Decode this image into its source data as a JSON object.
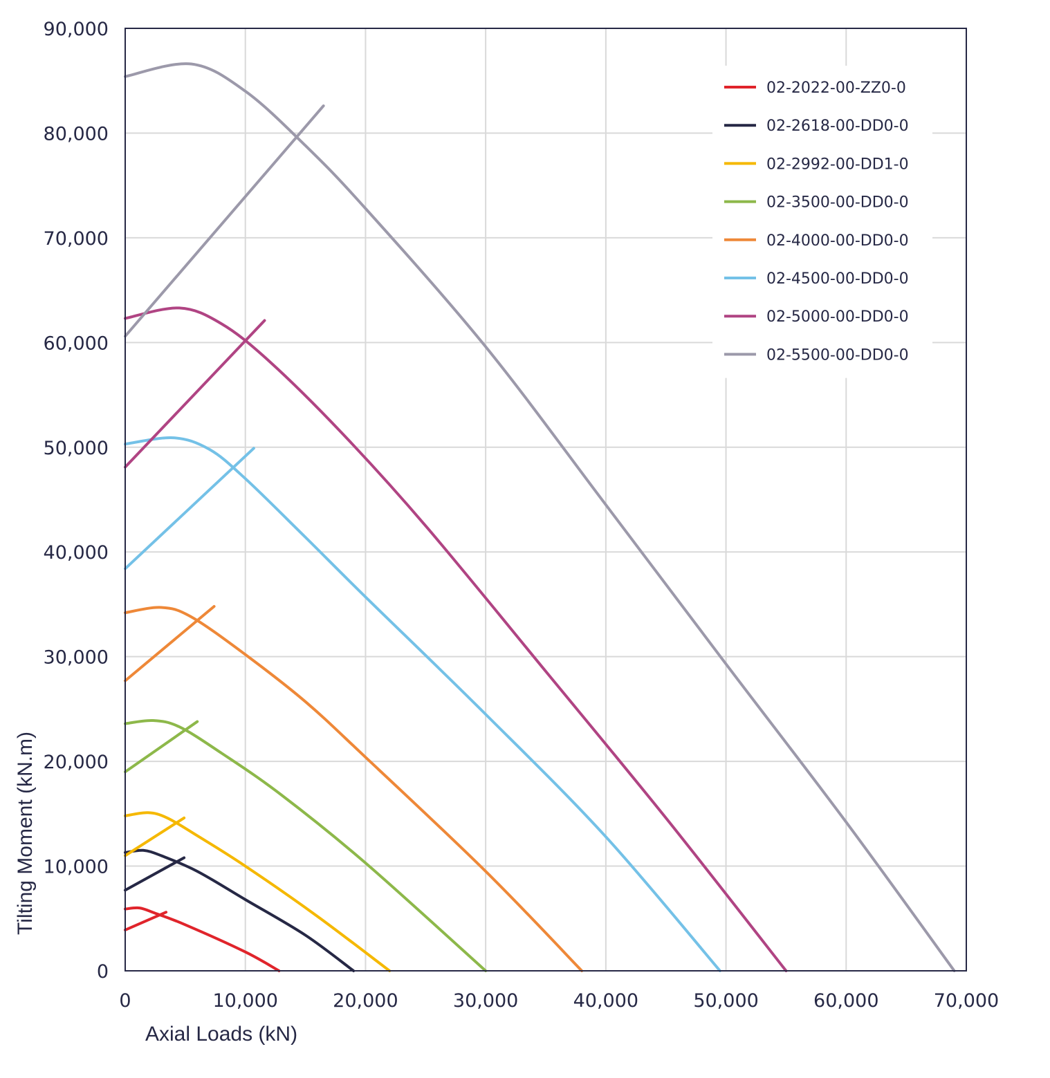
{
  "chart_data": {
    "type": "line",
    "title": "",
    "xlabel": "Axial Loads (kN)",
    "ylabel": "Tilting Moment (kN.m)",
    "xlim": [
      0,
      70000
    ],
    "ylim": [
      0,
      90000
    ],
    "x_ticks": [
      "0",
      "10,000",
      "20,000",
      "30,000",
      "40,000",
      "50,000",
      "60,000",
      "70,000"
    ],
    "y_ticks": [
      "0",
      "10,000",
      "20,000",
      "30,000",
      "40,000",
      "50,000",
      "60,000",
      "70,000",
      "80,000",
      "90,000"
    ],
    "grid": true,
    "legend_position": "top-right",
    "series": [
      {
        "name": "02-2022-00-ZZ0-0",
        "color": "#e0242b",
        "curve": [
          [
            0,
            5900
          ],
          [
            1200,
            6000
          ],
          [
            2500,
            5500
          ],
          [
            5000,
            4400
          ],
          [
            10000,
            1800
          ],
          [
            12800,
            0
          ]
        ],
        "segment": [
          [
            0,
            3900
          ],
          [
            3400,
            5600
          ]
        ]
      },
      {
        "name": "02-2618-00-DD0-0",
        "color": "#262845",
        "curve": [
          [
            0,
            11300
          ],
          [
            1500,
            11500
          ],
          [
            3000,
            11000
          ],
          [
            6000,
            9500
          ],
          [
            10000,
            6800
          ],
          [
            15000,
            3400
          ],
          [
            19000,
            0
          ]
        ],
        "segment": [
          [
            0,
            7700
          ],
          [
            4900,
            10800
          ]
        ]
      },
      {
        "name": "02-2992-00-DD1-0",
        "color": "#f5b800",
        "curve": [
          [
            0,
            14800
          ],
          [
            1900,
            15100
          ],
          [
            3500,
            14600
          ],
          [
            6000,
            12900
          ],
          [
            10000,
            10000
          ],
          [
            16000,
            5200
          ],
          [
            22000,
            0
          ]
        ],
        "segment": [
          [
            0,
            11000
          ],
          [
            4900,
            14600
          ]
        ]
      },
      {
        "name": "02-3500-00-DD0-0",
        "color": "#8db84a",
        "curve": [
          [
            0,
            23600
          ],
          [
            2300,
            23900
          ],
          [
            4500,
            23300
          ],
          [
            8000,
            20800
          ],
          [
            13000,
            16800
          ],
          [
            20000,
            10300
          ],
          [
            30000,
            0
          ]
        ],
        "segment": [
          [
            0,
            19000
          ],
          [
            6000,
            23800
          ]
        ]
      },
      {
        "name": "02-4000-00-DD0-0",
        "color": "#ee8838",
        "curve": [
          [
            0,
            34200
          ],
          [
            3000,
            34700
          ],
          [
            5500,
            33800
          ],
          [
            10000,
            30200
          ],
          [
            15000,
            25700
          ],
          [
            20000,
            20400
          ],
          [
            30000,
            9500
          ],
          [
            38000,
            0
          ]
        ],
        "segment": [
          [
            0,
            27700
          ],
          [
            7400,
            34800
          ]
        ]
      },
      {
        "name": "02-4500-00-DD0-0",
        "color": "#74c1e7",
        "curve": [
          [
            0,
            50300
          ],
          [
            4000,
            50900
          ],
          [
            7000,
            49800
          ],
          [
            10000,
            47000
          ],
          [
            15000,
            41400
          ],
          [
            20000,
            35700
          ],
          [
            30000,
            24500
          ],
          [
            40000,
            12800
          ],
          [
            49500,
            0
          ]
        ],
        "segment": [
          [
            0,
            38400
          ],
          [
            10700,
            49900
          ]
        ]
      },
      {
        "name": "02-5000-00-DD0-0",
        "color": "#b04483",
        "curve": [
          [
            0,
            62300
          ],
          [
            4500,
            63300
          ],
          [
            8000,
            61800
          ],
          [
            12000,
            58200
          ],
          [
            18000,
            51400
          ],
          [
            25000,
            42500
          ],
          [
            35000,
            28600
          ],
          [
            45000,
            14600
          ],
          [
            55000,
            0
          ]
        ],
        "segment": [
          [
            0,
            48100
          ],
          [
            11600,
            62100
          ]
        ]
      },
      {
        "name": "02-5500-00-DD0-0",
        "color": "#9c99aa",
        "curve": [
          [
            0,
            85400
          ],
          [
            5500,
            86600
          ],
          [
            10000,
            84000
          ],
          [
            15000,
            78800
          ],
          [
            20000,
            72800
          ],
          [
            30000,
            59600
          ],
          [
            40000,
            44500
          ],
          [
            50000,
            29300
          ],
          [
            60000,
            14200
          ],
          [
            69000,
            0
          ]
        ],
        "segment": [
          [
            0,
            60600
          ],
          [
            16500,
            82600
          ]
        ]
      }
    ]
  }
}
